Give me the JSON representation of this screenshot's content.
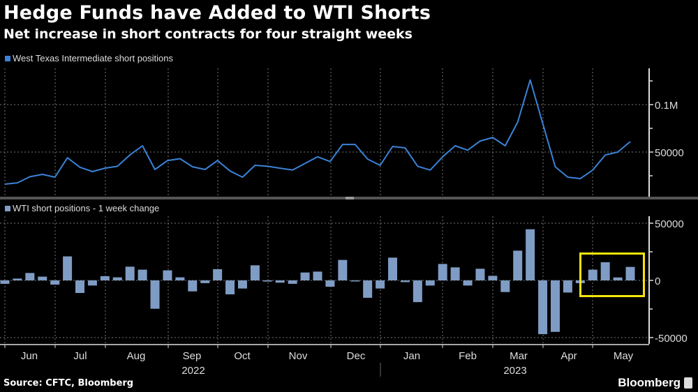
{
  "header": {
    "title": "Hedge Funds have Added to WTI Shorts",
    "subtitle": "Net increase in short contracts for four straight weeks"
  },
  "footer": {
    "source": "Source: CFTC, Bloomberg",
    "brand": "Bloomberg"
  },
  "colors": {
    "line": "#3b82d6",
    "bar": "#7f9cc4",
    "highlight": "#f5e50a",
    "grid": "#777777"
  },
  "chart_data": [
    {
      "type": "line",
      "title": "West Texas Intermediate short positions",
      "legend": "West Texas Intermediate short positions",
      "ylim": [
        0,
        138000
      ],
      "yticks": [
        {
          "value": 100000,
          "label": "0.1M"
        },
        {
          "value": 50000,
          "label": "50000"
        }
      ],
      "values": [
        16200,
        17600,
        24000,
        26500,
        23500,
        44000,
        34000,
        29400,
        33000,
        35000,
        47000,
        56600,
        31600,
        41000,
        43000,
        34500,
        31600,
        41000,
        30000,
        23500,
        36000,
        35000,
        33000,
        31000,
        38000,
        45000,
        40000,
        58000,
        58000,
        42600,
        36000,
        55900,
        54400,
        35000,
        31000,
        45000,
        56600,
        52000,
        61700,
        65400,
        56600,
        81600,
        126000,
        80000,
        34500,
        23500,
        22000,
        31000,
        47000,
        50000,
        61000
      ]
    },
    {
      "type": "bar",
      "title": "WTI short positions - 1 week change",
      "legend": "WTI short positions - 1 week change",
      "ylim": [
        -56000,
        56000
      ],
      "yticks": [
        {
          "value": 50000,
          "label": "50000"
        },
        {
          "value": 0,
          "label": "0"
        },
        {
          "value": -50000,
          "label": "-50000"
        }
      ],
      "values": [
        -3000,
        1600,
        6500,
        3300,
        -3700,
        21000,
        -11000,
        -4500,
        3700,
        2700,
        12000,
        9400,
        -24800,
        8800,
        2700,
        -9600,
        -2400,
        9800,
        -12200,
        -7100,
        13200,
        -1000,
        -2000,
        -3000,
        6900,
        7700,
        -5500,
        17900,
        -500,
        -15200,
        -7100,
        19900,
        -1500,
        -19000,
        -4500,
        14400,
        11400,
        -4500,
        10200,
        4000,
        -10200,
        26000,
        44700,
        -47000,
        -45000,
        -10600,
        -2400,
        9400,
        15900,
        2600,
        11800
      ],
      "highlight_last_n": 4
    }
  ],
  "x_axis": {
    "months": [
      "Jun",
      "Jul",
      "Aug",
      "Sep",
      "Oct",
      "Nov",
      "Dec",
      "Jan",
      "Feb",
      "Mar",
      "Apr",
      "May"
    ],
    "years": [
      "2022",
      "2023"
    ]
  }
}
